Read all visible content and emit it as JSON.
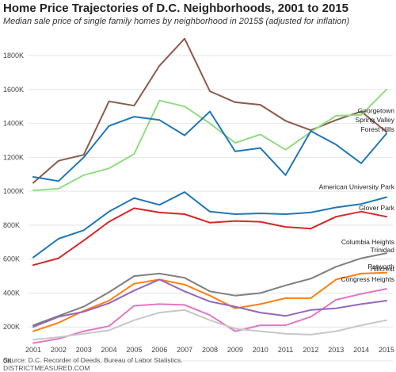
{
  "chart_data": {
    "type": "line",
    "title": "Home Price Trajectories of D.C. Neighborhoods, 2001 to 2015",
    "subtitle": "Median sale price of single family homes by neighborhood in 2015$ (adjusted for inflation)",
    "source": "Source: D.C. Recorder of Deeds, Bureau of Labor Statistics.",
    "site": "DISTRICTMEASURED.COM",
    "x": [
      2001,
      2002,
      2003,
      2004,
      2005,
      2006,
      2007,
      2008,
      2009,
      2010,
      2011,
      2012,
      2013,
      2014,
      2015
    ],
    "x_tick_labels": [
      "2001",
      "2002",
      "2003",
      "2004",
      "2005",
      "2006",
      "2007",
      "2008",
      "2009",
      "2010",
      "2011",
      "2012",
      "2013",
      "2014",
      "2015"
    ],
    "ylim": [
      0,
      1950000
    ],
    "y_ticks": [
      0,
      200000,
      400000,
      600000,
      800000,
      1000000,
      1200000,
      1400000,
      1600000,
      1800000
    ],
    "y_tick_labels": [
      "0K",
      "200K",
      "400K",
      "600K",
      "800K",
      "1000K",
      "1200K",
      "1400K",
      "1600K",
      "1800K"
    ],
    "grid": true,
    "series": [
      {
        "name": "Georgetown",
        "color": "#8B5A4A",
        "values": [
          1050000,
          1180000,
          1215000,
          1530000,
          1505000,
          1740000,
          1900000,
          1590000,
          1525000,
          1510000,
          1415000,
          1360000,
          1420000,
          1470000,
          1350000
        ]
      },
      {
        "name": "Spring Valley",
        "color": "#90DC80",
        "values": [
          1005000,
          1015000,
          1095000,
          1135000,
          1220000,
          1535000,
          1500000,
          1400000,
          1285000,
          1335000,
          1245000,
          1350000,
          1445000,
          1450000,
          1600000
        ]
      },
      {
        "name": "Forest Hills",
        "color": "#2077B4",
        "values": [
          1085000,
          1060000,
          1200000,
          1385000,
          1440000,
          1420000,
          1330000,
          1470000,
          1235000,
          1255000,
          1095000,
          1355000,
          1275000,
          1165000,
          1340000
        ]
      },
      {
        "name": "American University Park",
        "color": "#2077B4",
        "values": [
          610000,
          720000,
          770000,
          880000,
          960000,
          920000,
          995000,
          880000,
          865000,
          870000,
          865000,
          875000,
          905000,
          925000,
          965000
        ]
      },
      {
        "name": "Glover Park",
        "color": "#D62728",
        "values": [
          565000,
          605000,
          710000,
          820000,
          900000,
          875000,
          865000,
          815000,
          825000,
          820000,
          790000,
          780000,
          850000,
          880000,
          850000
        ]
      },
      {
        "name": "Columbia Heights",
        "color": "#7F7F7F",
        "values": [
          210000,
          265000,
          320000,
          405000,
          500000,
          515000,
          490000,
          410000,
          385000,
          400000,
          445000,
          485000,
          555000,
          605000,
          635000
        ]
      },
      {
        "name": "Petworth",
        "color": "#FF7F0E",
        "values": [
          175000,
          225000,
          295000,
          355000,
          455000,
          480000,
          450000,
          385000,
          310000,
          335000,
          370000,
          370000,
          480000,
          515000,
          520000
        ]
      },
      {
        "name": "Trinidad",
        "color": "#E377C2",
        "values": [
          105000,
          130000,
          175000,
          205000,
          325000,
          335000,
          330000,
          270000,
          175000,
          210000,
          210000,
          260000,
          360000,
          395000,
          425000
        ]
      },
      {
        "name": "Hillcrest",
        "color": "#9467BD",
        "values": [
          200000,
          260000,
          290000,
          340000,
          415000,
          480000,
          410000,
          350000,
          320000,
          285000,
          265000,
          300000,
          310000,
          335000,
          355000
        ]
      },
      {
        "name": "Congress Heights",
        "color": "#C7C7C7",
        "values": [
          125000,
          140000,
          160000,
          180000,
          240000,
          285000,
          300000,
          240000,
          190000,
          175000,
          160000,
          155000,
          175000,
          210000,
          240000
        ]
      }
    ]
  }
}
